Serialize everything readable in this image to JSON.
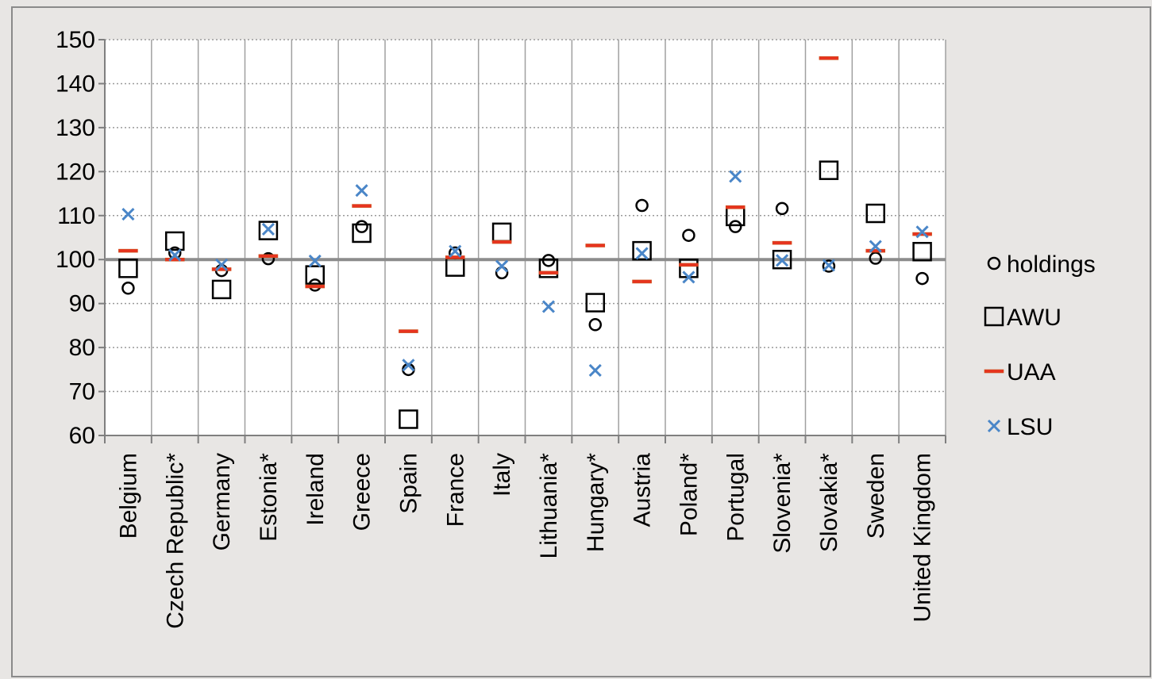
{
  "chart_data": {
    "type": "scatter",
    "title": "",
    "xlabel": "",
    "ylabel": "",
    "ylim": [
      60,
      150
    ],
    "y_ticks": [
      "60",
      "70",
      "80",
      "90",
      "100",
      "110",
      "120",
      "130",
      "140",
      "150"
    ],
    "reference_line": 100,
    "grid": true,
    "legend_position": "right",
    "categories": [
      "Belgium",
      "Czech Republic*",
      "Germany",
      "Estonia*",
      "Ireland",
      "Greece",
      "Spain",
      "France",
      "Italy",
      "Lithuania*",
      "Hungary*",
      "Austria",
      "Poland*",
      "Portugal",
      "Slovenia*",
      "Slovakia*",
      "Sweden",
      "United Kingdom"
    ],
    "series": [
      {
        "name": "holdings",
        "marker": "circle",
        "color": "#000000",
        "values": [
          93.5,
          101.5,
          97.5,
          100.2,
          94.2,
          107.5,
          75,
          101.5,
          97,
          99.8,
          85.2,
          112.3,
          105.5,
          107.5,
          111.6,
          98.5,
          100.3,
          95.7
        ]
      },
      {
        "name": "AWU",
        "marker": "square",
        "color": "#000000",
        "values": [
          98,
          104.2,
          93.2,
          106.6,
          96.5,
          106,
          63.7,
          98.3,
          106.2,
          98,
          90.2,
          102,
          98,
          109.8,
          100,
          120.3,
          110.5,
          101.8
        ]
      },
      {
        "name": "UAA",
        "marker": "dash",
        "color": "#e8331f",
        "values": [
          102,
          100,
          97.8,
          100.8,
          93.9,
          112.2,
          83.7,
          100.5,
          104,
          97,
          103.2,
          95,
          98.8,
          111.9,
          103.8,
          145.8,
          102,
          105.8
        ]
      },
      {
        "name": "LSU",
        "marker": "x",
        "color": "#4a86c8",
        "values": [
          110.3,
          101,
          98.8,
          106.9,
          99.7,
          115.7,
          76,
          101.9,
          98.5,
          89.3,
          74.8,
          101.4,
          96,
          118.9,
          99.8,
          98.7,
          103,
          106.3
        ]
      }
    ]
  }
}
